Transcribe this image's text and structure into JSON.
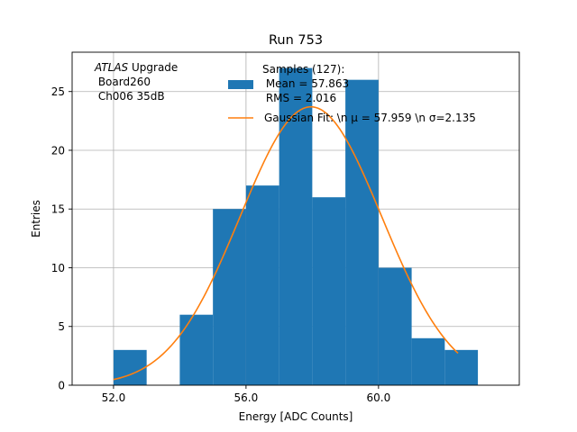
{
  "chart_data": {
    "type": "bar",
    "title": "Run 753",
    "xlabel": "Energy [ADC Counts]",
    "ylabel": "Entries",
    "xlim": [
      50.75,
      64.25
    ],
    "ylim": [
      0,
      28.35
    ],
    "grid": true,
    "x_ticks": [
      52.0,
      56.0,
      60.0
    ],
    "x_tick_labels": [
      "52.0",
      "56.0",
      "60.0"
    ],
    "y_ticks": [
      0,
      5,
      10,
      15,
      20,
      25
    ],
    "y_tick_labels": [
      "0",
      "5",
      "10",
      "15",
      "20",
      "25"
    ],
    "bar_color": "#1f77b4",
    "fit_color": "#ff7f0e",
    "bins": [
      {
        "x0": 52,
        "x1": 53,
        "count": 3
      },
      {
        "x0": 53,
        "x1": 54,
        "count": 0
      },
      {
        "x0": 54,
        "x1": 55,
        "count": 6
      },
      {
        "x0": 55,
        "x1": 56,
        "count": 15
      },
      {
        "x0": 56,
        "x1": 57,
        "count": 17
      },
      {
        "x0": 57,
        "x1": 58,
        "count": 27
      },
      {
        "x0": 58,
        "x1": 59,
        "count": 16
      },
      {
        "x0": 59,
        "x1": 60,
        "count": 26
      },
      {
        "x0": 60,
        "x1": 61,
        "count": 10
      },
      {
        "x0": 61,
        "x1": 62,
        "count": 4
      },
      {
        "x0": 62,
        "x1": 63,
        "count": 3
      }
    ],
    "fit": {
      "mu": 57.959,
      "sigma": 2.135,
      "amplitude": 23.7,
      "x_range": [
        52.0,
        62.4
      ]
    },
    "annotation": {
      "atlas": "ATLAS",
      "upgrade": " Upgrade",
      "line2": " Board260",
      "line3": " Ch006 35dB"
    },
    "legend": {
      "placement": "top-center",
      "hist_lines": [
        "Samples (127):",
        " Mean = 57.863",
        " RMS = 2.016"
      ],
      "fit_label": "Gaussian Fit: \\n μ = 57.959 \\n σ=2.135"
    }
  }
}
